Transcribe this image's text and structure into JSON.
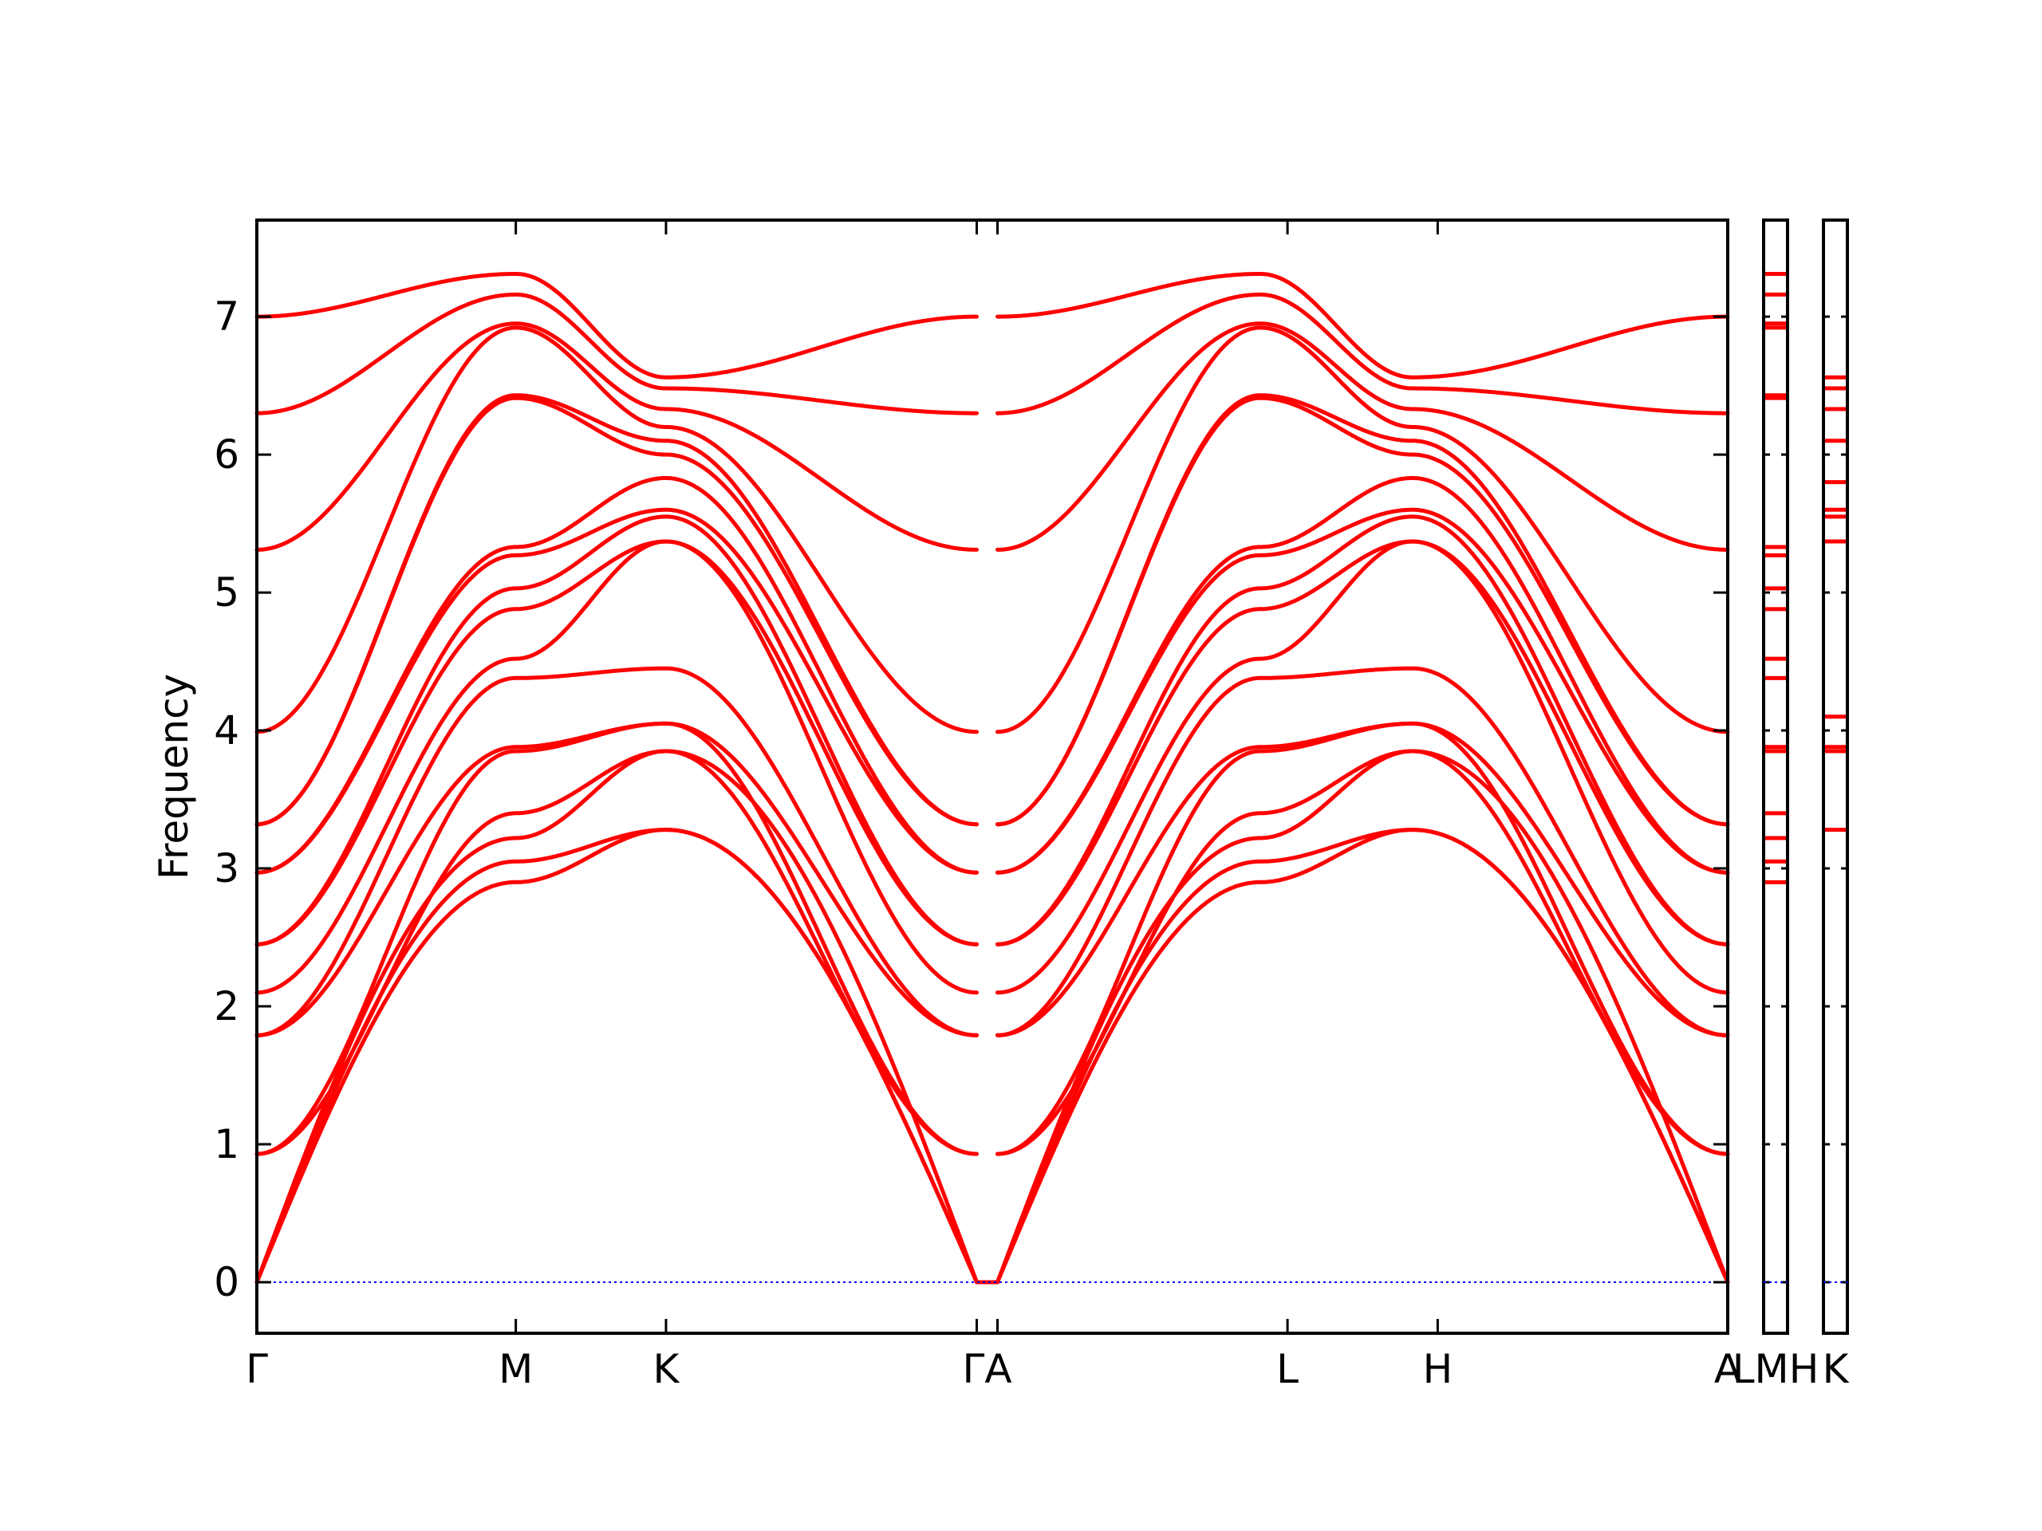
{
  "chart_data": {
    "type": "line",
    "ylabel": "Frequency",
    "xlabel": "",
    "ylim": [
      -0.37,
      7.7
    ],
    "yticks": [
      0,
      1,
      2,
      3,
      4,
      5,
      6,
      7
    ],
    "ytick_labels": [
      "0",
      "1",
      "2",
      "3",
      "4",
      "5",
      "6",
      "7"
    ],
    "kpath_labels": [
      "Γ",
      "M",
      "K",
      "ΓA",
      "L",
      "H",
      "A"
    ],
    "kpath_positions": [
      0.0,
      1.0,
      1.58,
      2.82,
      3.98,
      4.56,
      5.68
    ],
    "tick_positions": [
      1.0,
      1.58,
      2.78,
      2.86,
      3.98,
      4.56
    ],
    "segments": [
      [
        0.0,
        2.78
      ],
      [
        2.86,
        5.68
      ]
    ],
    "bands": [
      {
        "gamma": 0.0,
        "m": 2.9,
        "k": 3.28,
        "shape": "acoustic"
      },
      {
        "gamma": 0.0,
        "m": 3.05,
        "k": 3.28,
        "shape": "acoustic"
      },
      {
        "gamma": 0.0,
        "m": 3.22,
        "k": 3.85,
        "shape": "acoustic"
      },
      {
        "gamma": 0.93,
        "m": 3.4,
        "k": 3.85
      },
      {
        "gamma": 0.93,
        "m": 3.85,
        "k": 4.05
      },
      {
        "gamma": 1.79,
        "m": 3.88,
        "k": 4.05
      },
      {
        "gamma": 1.79,
        "m": 4.38,
        "k": 4.45
      },
      {
        "gamma": 2.1,
        "m": 4.52,
        "k": 5.37
      },
      {
        "gamma": 2.45,
        "m": 4.88,
        "k": 5.37
      },
      {
        "gamma": 2.45,
        "m": 5.03,
        "k": 5.55
      },
      {
        "gamma": 2.97,
        "m": 5.27,
        "k": 5.6
      },
      {
        "gamma": 2.97,
        "m": 5.33,
        "k": 5.83
      },
      {
        "gamma": 3.32,
        "m": 6.41,
        "k": 6.0
      },
      {
        "gamma": 3.32,
        "m": 6.43,
        "k": 6.1
      },
      {
        "gamma": 3.99,
        "m": 6.92,
        "k": 6.2
      },
      {
        "gamma": 5.31,
        "m": 6.95,
        "k": 6.33
      },
      {
        "gamma": 6.3,
        "m": 7.16,
        "k": 6.48
      },
      {
        "gamma": 7.0,
        "m": 7.31,
        "k": 6.56
      }
    ],
    "dos_panels": [
      {
        "label": "LMH",
        "values": [
          2.9,
          3.05,
          3.22,
          3.4,
          3.85,
          3.88,
          4.38,
          4.52,
          4.88,
          5.03,
          5.27,
          5.33,
          6.41,
          6.43,
          6.92,
          6.95,
          7.16,
          7.31
        ]
      },
      {
        "label": "K",
        "values": [
          3.28,
          3.85,
          3.88,
          4.1,
          5.37,
          5.55,
          5.6,
          5.8,
          6.1,
          6.33,
          6.48,
          6.56
        ]
      }
    ],
    "series_color": "#ff0000",
    "zero_line_color": "#0000ff",
    "grid": false
  }
}
